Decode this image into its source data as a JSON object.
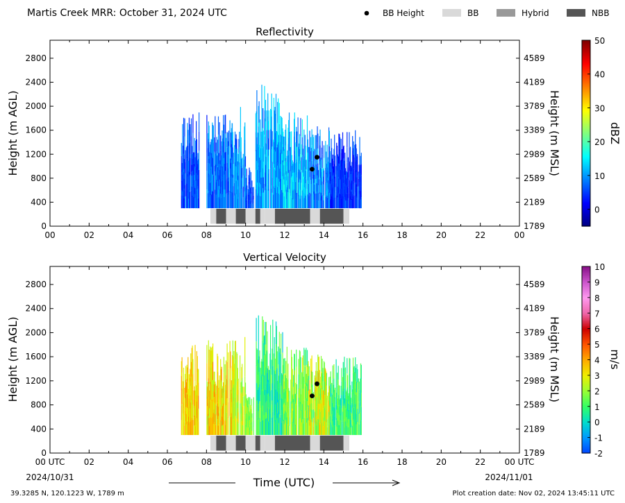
{
  "figure": {
    "suptitle": "Martis Creek MRR:  October 31, 2024 UTC",
    "footer_left": "39.3285 N, 120.1223 W, 1789 m",
    "footer_right": "Plot creation date: Nov 02, 2024 13:45:11 UTC",
    "xlabel": "Time (UTC)",
    "date_start": "2024/10/31",
    "date_end": "2024/11/01",
    "x_start_label": "00 UTC",
    "x_end_label": "00 UTC"
  },
  "legend": {
    "placement": "top-right",
    "items": [
      {
        "label": "BB Height",
        "kind": "marker",
        "color": "#000000"
      },
      {
        "label": "BB",
        "kind": "patch",
        "color": "#d9d9d9"
      },
      {
        "label": "Hybrid",
        "kind": "patch",
        "color": "#999999"
      },
      {
        "label": "NBB",
        "kind": "patch",
        "color": "#555555"
      }
    ]
  },
  "chart_data": [
    {
      "type": "heatmap",
      "title": "Reflectivity",
      "ylabel": "Height (m AGL)",
      "ylabel_right": "Height (m MSL)",
      "colorbar_label": "dBZ",
      "colorbar_ticks": [
        0,
        10,
        20,
        30,
        40,
        50
      ],
      "colorbar_range": [
        -5,
        50
      ],
      "colormap": [
        "#00007f",
        "#0000ff",
        "#0080ff",
        "#00ffff",
        "#80ff80",
        "#ffff00",
        "#ff8000",
        "#ff0000",
        "#7f0000"
      ],
      "xlim": [
        0,
        24
      ],
      "ylim": [
        0,
        3100
      ],
      "x_ticks": [
        "00",
        "02",
        "04",
        "06",
        "08",
        "10",
        "12",
        "14",
        "16",
        "18",
        "20",
        "22",
        "00"
      ],
      "y_ticks": [
        0,
        400,
        800,
        1200,
        1600,
        2000,
        2400,
        2800
      ],
      "y_ticks_right": [
        1789,
        2189,
        2589,
        2989,
        3389,
        3789,
        4189,
        4589
      ],
      "echo_segments": [
        {
          "t0": 6.7,
          "t1": 7.6,
          "base": 300,
          "top": 1900,
          "low": 2,
          "high": 10
        },
        {
          "t0": 8.0,
          "t1": 9.3,
          "base": 300,
          "top": 1900,
          "low": 3,
          "high": 12
        },
        {
          "t0": 9.3,
          "t1": 10.0,
          "base": 300,
          "top": 2000,
          "low": 4,
          "high": 14
        },
        {
          "t0": 10.0,
          "t1": 10.4,
          "base": 300,
          "top": 1000,
          "low": 2,
          "high": 8
        },
        {
          "t0": 10.5,
          "t1": 11.9,
          "base": 300,
          "top": 2400,
          "low": 5,
          "high": 16
        },
        {
          "t0": 11.9,
          "t1": 13.2,
          "base": 300,
          "top": 1900,
          "low": 6,
          "high": 18
        },
        {
          "t0": 13.2,
          "t1": 14.3,
          "base": 300,
          "top": 1700,
          "low": 4,
          "high": 14
        },
        {
          "t0": 14.3,
          "t1": 15.9,
          "base": 300,
          "top": 1600,
          "low": 1,
          "high": 8
        }
      ],
      "bb_height_points": [
        {
          "t": 13.4,
          "h": 950
        },
        {
          "t": 13.65,
          "h": 1150
        }
      ],
      "bb_type_bar": [
        {
          "t0": 8.2,
          "t1": 8.5,
          "kind": "BB"
        },
        {
          "t0": 8.5,
          "t1": 9.0,
          "kind": "NBB"
        },
        {
          "t0": 9.0,
          "t1": 9.5,
          "kind": "BB"
        },
        {
          "t0": 9.5,
          "t1": 10.0,
          "kind": "NBB"
        },
        {
          "t0": 10.0,
          "t1": 10.5,
          "kind": "BB"
        },
        {
          "t0": 10.5,
          "t1": 10.75,
          "kind": "NBB"
        },
        {
          "t0": 10.75,
          "t1": 11.0,
          "kind": "BB"
        },
        {
          "t0": 11.0,
          "t1": 11.5,
          "kind": "BB"
        },
        {
          "t0": 11.5,
          "t1": 13.3,
          "kind": "NBB"
        },
        {
          "t0": 13.3,
          "t1": 13.8,
          "kind": "BB"
        },
        {
          "t0": 13.8,
          "t1": 15.0,
          "kind": "NBB"
        },
        {
          "t0": 15.0,
          "t1": 15.3,
          "kind": "BB"
        }
      ]
    },
    {
      "type": "heatmap",
      "title": "Vertical Velocity",
      "ylabel": "Height (m AGL)",
      "ylabel_right": "Height (m MSL)",
      "colorbar_label": "m/s",
      "colorbar_ticks": [
        -2,
        -1,
        0,
        1,
        2,
        3,
        4,
        5,
        6,
        7,
        8,
        9,
        10
      ],
      "colorbar_range": [
        -2,
        10
      ],
      "colormap": [
        "#0044ff",
        "#0099ff",
        "#00ddcc",
        "#33ff66",
        "#99ff33",
        "#eeee00",
        "#ffaa00",
        "#ff5500",
        "#cc0000",
        "#ee66aa",
        "#ff99ee",
        "#cc55cc",
        "#881188"
      ],
      "xlim": [
        0,
        24
      ],
      "ylim": [
        0,
        3100
      ],
      "x_ticks": [
        "00",
        "02",
        "04",
        "06",
        "08",
        "10",
        "12",
        "14",
        "16",
        "18",
        "20",
        "22",
        "00"
      ],
      "y_ticks": [
        0,
        400,
        800,
        1200,
        1600,
        2000,
        2400,
        2800
      ],
      "y_ticks_right": [
        1789,
        2189,
        2589,
        2989,
        3389,
        3789,
        4189,
        4589
      ],
      "echo_segments": [
        {
          "t0": 6.7,
          "t1": 7.6,
          "base": 300,
          "top": 1900,
          "low": 2.5,
          "high": 4.5
        },
        {
          "t0": 8.0,
          "t1": 9.3,
          "base": 300,
          "top": 1900,
          "low": 2,
          "high": 4.5
        },
        {
          "t0": 9.3,
          "t1": 10.0,
          "base": 300,
          "top": 2000,
          "low": 1.5,
          "high": 3.5
        },
        {
          "t0": 10.0,
          "t1": 10.4,
          "base": 300,
          "top": 1000,
          "low": 1,
          "high": 2.5
        },
        {
          "t0": 10.5,
          "t1": 11.9,
          "base": 300,
          "top": 2300,
          "low": -0.5,
          "high": 2
        },
        {
          "t0": 11.9,
          "t1": 13.2,
          "base": 300,
          "top": 1800,
          "low": 0.5,
          "high": 3
        },
        {
          "t0": 13.2,
          "t1": 14.3,
          "base": 300,
          "top": 1700,
          "low": 1,
          "high": 4
        },
        {
          "t0": 14.3,
          "t1": 15.9,
          "base": 300,
          "top": 1600,
          "low": 0,
          "high": 2
        }
      ],
      "bb_height_points": [
        {
          "t": 13.4,
          "h": 950
        },
        {
          "t": 13.65,
          "h": 1150
        }
      ],
      "bb_type_bar": [
        {
          "t0": 8.2,
          "t1": 8.5,
          "kind": "BB"
        },
        {
          "t0": 8.5,
          "t1": 9.0,
          "kind": "NBB"
        },
        {
          "t0": 9.0,
          "t1": 9.5,
          "kind": "BB"
        },
        {
          "t0": 9.5,
          "t1": 10.0,
          "kind": "NBB"
        },
        {
          "t0": 10.0,
          "t1": 10.5,
          "kind": "BB"
        },
        {
          "t0": 10.5,
          "t1": 10.75,
          "kind": "NBB"
        },
        {
          "t0": 10.75,
          "t1": 11.0,
          "kind": "BB"
        },
        {
          "t0": 11.0,
          "t1": 11.5,
          "kind": "BB"
        },
        {
          "t0": 11.5,
          "t1": 13.3,
          "kind": "NBB"
        },
        {
          "t0": 13.3,
          "t1": 13.8,
          "kind": "BB"
        },
        {
          "t0": 13.8,
          "t1": 15.0,
          "kind": "NBB"
        },
        {
          "t0": 15.0,
          "t1": 15.3,
          "kind": "BB"
        }
      ]
    }
  ]
}
